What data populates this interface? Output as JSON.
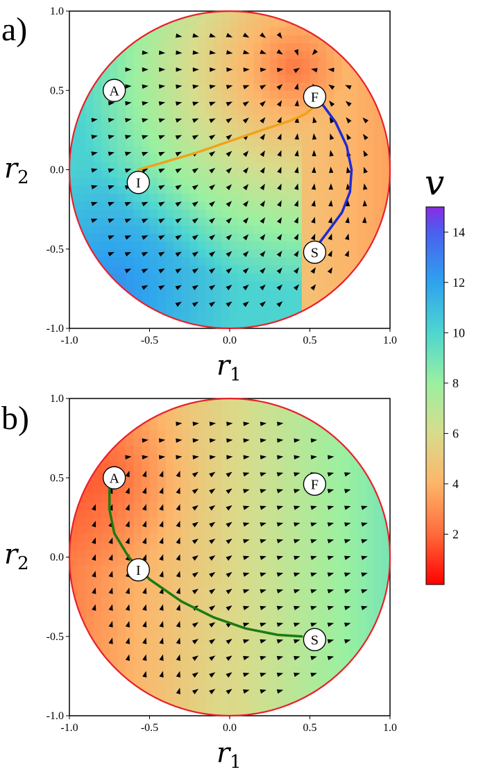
{
  "colors": {
    "boundary": "#e8202a",
    "arrow": "#000000",
    "path_orange": "#f0a21a",
    "path_blue": "#1f2ad6",
    "path_green": "#1b7a12"
  },
  "chart_data": [
    {
      "type": "vector-field",
      "panel_label": "a)",
      "xlabel_main": "r",
      "xlabel_sub": "1",
      "ylabel_main": "r",
      "ylabel_sub": "2",
      "xlim": [
        -1.0,
        1.0
      ],
      "ylim": [
        -1.0,
        1.0
      ],
      "x_ticks": [
        "-1.0",
        "-0.5",
        "0.0",
        "0.5",
        "1.0"
      ],
      "y_ticks": [
        "-1.0",
        "-0.5",
        "0.0",
        "0.5",
        "1.0"
      ],
      "domain": "unit disk",
      "points": [
        {
          "label": "A",
          "x": -0.72,
          "y": 0.5
        },
        {
          "label": "F",
          "x": 0.53,
          "y": 0.46
        },
        {
          "label": "I",
          "x": -0.57,
          "y": -0.08
        },
        {
          "label": "S",
          "x": 0.53,
          "y": -0.52
        }
      ],
      "paths": [
        {
          "from": "I",
          "to": "F",
          "color": "orange",
          "x": [
            -0.57,
            -0.4,
            -0.2,
            0.0,
            0.2,
            0.38,
            0.47,
            0.53
          ],
          "y": [
            0.0,
            0.05,
            0.11,
            0.18,
            0.25,
            0.31,
            0.35,
            0.4
          ]
        },
        {
          "from": "F",
          "to": "S",
          "color": "blue",
          "x": [
            0.58,
            0.66,
            0.73,
            0.76,
            0.75,
            0.7,
            0.62,
            0.56
          ],
          "y": [
            0.41,
            0.3,
            0.15,
            0.0,
            -0.14,
            -0.27,
            -0.38,
            -0.46
          ]
        }
      ]
    },
    {
      "type": "vector-field",
      "panel_label": "b)",
      "xlabel_main": "r",
      "xlabel_sub": "1",
      "ylabel_main": "r",
      "ylabel_sub": "2",
      "xlim": [
        -1.0,
        1.0
      ],
      "ylim": [
        -1.0,
        1.0
      ],
      "x_ticks": [
        "-1.0",
        "-0.5",
        "0.0",
        "0.5",
        "1.0"
      ],
      "y_ticks": [
        "-1.0",
        "-0.5",
        "0.0",
        "0.5",
        "1.0"
      ],
      "domain": "unit disk",
      "points": [
        {
          "label": "A",
          "x": -0.72,
          "y": 0.5
        },
        {
          "label": "F",
          "x": 0.53,
          "y": 0.46
        },
        {
          "label": "I",
          "x": -0.57,
          "y": -0.08
        },
        {
          "label": "S",
          "x": 0.53,
          "y": -0.52
        }
      ],
      "paths": [
        {
          "from": "A",
          "to": "S",
          "color": "green",
          "x": [
            -0.75,
            -0.75,
            -0.72,
            -0.63,
            -0.5,
            -0.3,
            -0.1,
            0.1,
            0.3,
            0.45
          ],
          "y": [
            0.46,
            0.3,
            0.15,
            0.0,
            -0.14,
            -0.28,
            -0.38,
            -0.45,
            -0.49,
            -0.5
          ]
        }
      ]
    }
  ],
  "colorbar": {
    "label": "v",
    "min": 0,
    "max": 15,
    "ticks": [
      2,
      4,
      6,
      8,
      10,
      12,
      14
    ],
    "tick_labels": [
      "2",
      "4",
      "6",
      "8",
      "10",
      "12",
      "14"
    ],
    "colormap": "rainbow",
    "stops": [
      {
        "value": 0,
        "color": "#ff0000"
      },
      {
        "value": 2,
        "color": "#ff6a3a"
      },
      {
        "value": 4,
        "color": "#fdb56a"
      },
      {
        "value": 6,
        "color": "#d8dc8c"
      },
      {
        "value": 8,
        "color": "#9af0a0"
      },
      {
        "value": 10,
        "color": "#4ed6cf"
      },
      {
        "value": 12,
        "color": "#2ea3ee"
      },
      {
        "value": 14,
        "color": "#4a5ff0"
      },
      {
        "value": 15,
        "color": "#8a2be2"
      }
    ]
  }
}
